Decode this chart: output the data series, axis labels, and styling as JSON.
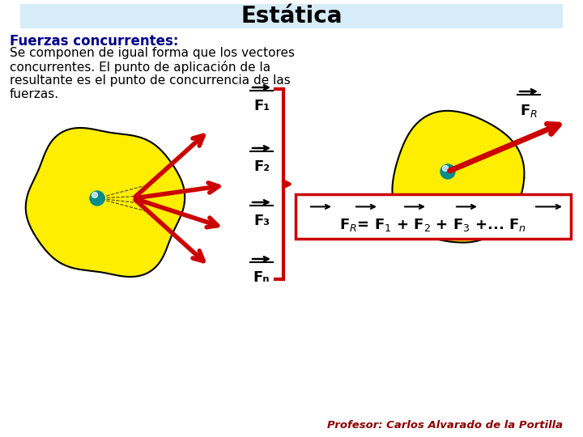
{
  "title": "Estática",
  "title_bg": "#d6ecf8",
  "bg_color": "#ffffff",
  "heading_text": "Fuerzas concurrentes:",
  "heading_color": "#00008B",
  "body_lines": [
    "Se componen de igual forma que los vectores",
    "concurrentes. El punto de aplicación de la",
    "resultante es el punto de concurrencia de las",
    "fuerzas."
  ],
  "professor_text": "Profesor: Carlos Alvarado de la Portilla",
  "professor_color": "#8B0000",
  "arrow_color": "#CC0000",
  "formula_box_color": "#CC0000",
  "yellow_color": "#FFEE00",
  "teal_color": "#008B8B",
  "force_names": [
    "F₁",
    "F₂",
    "F₃",
    "Fₙ"
  ]
}
